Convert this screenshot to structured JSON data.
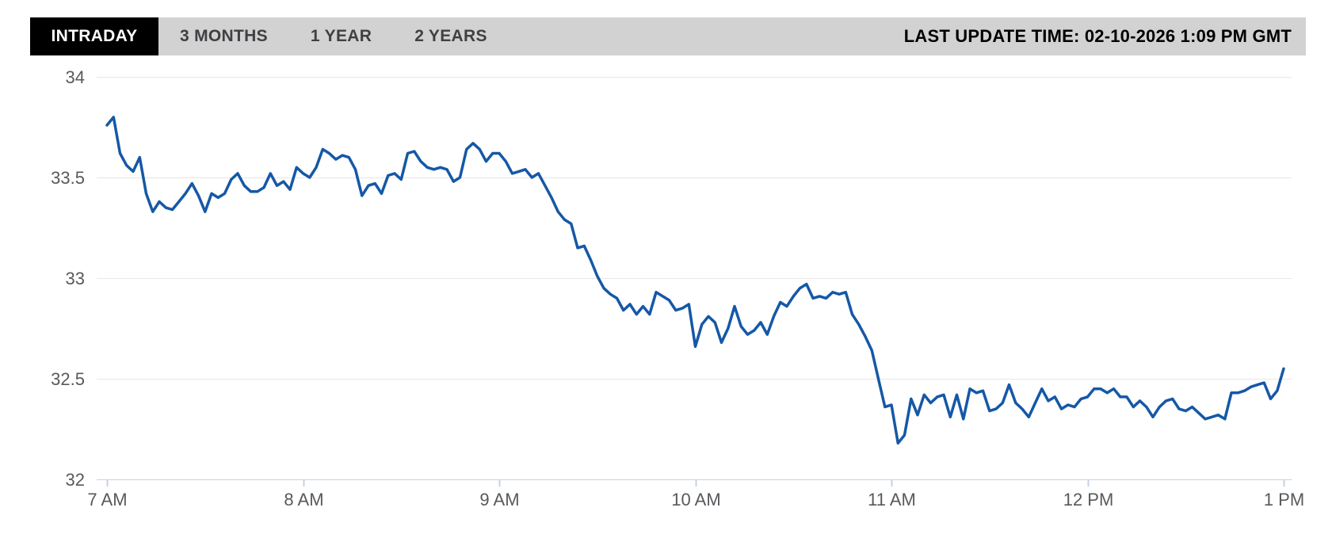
{
  "tabs": {
    "items": [
      {
        "label": "INTRADAY",
        "active": true
      },
      {
        "label": "3 MONTHS",
        "active": false
      },
      {
        "label": "1 YEAR",
        "active": false
      },
      {
        "label": "2 YEARS",
        "active": false
      }
    ]
  },
  "header": {
    "last_update": "LAST UPDATE TIME: 02-10-2026 1:09 PM GMT"
  },
  "colors": {
    "line": "#1558a6",
    "grid": "#e7e7e7",
    "axis": "#c6d2e1",
    "axis_text": "#58595c",
    "tab_bar_bg": "#d2d2d2",
    "tab_active_bg": "#000000",
    "tab_active_text": "#ffffff",
    "tab_text": "#3f4043"
  },
  "chart_data": {
    "type": "line",
    "title": "",
    "xlabel": "",
    "ylabel": "",
    "legend": "none",
    "grid": "horizontal-only",
    "ylim": [
      32,
      34
    ],
    "y_ticks": [
      34,
      33.5,
      33,
      32.5,
      32
    ],
    "x_tick_labels": [
      "7 AM",
      "8 AM",
      "9 AM",
      "10 AM",
      "11 AM",
      "12 PM",
      "1 PM"
    ],
    "x_interval_minutes": 2,
    "x_range_minutes": 360,
    "series": [
      {
        "name": "price",
        "values": [
          33.76,
          33.8,
          33.62,
          33.56,
          33.53,
          33.6,
          33.42,
          33.33,
          33.38,
          33.35,
          33.34,
          33.38,
          33.42,
          33.47,
          33.41,
          33.33,
          33.42,
          33.4,
          33.42,
          33.49,
          33.52,
          33.46,
          33.43,
          33.43,
          33.45,
          33.52,
          33.46,
          33.48,
          33.44,
          33.55,
          33.52,
          33.5,
          33.55,
          33.64,
          33.62,
          33.59,
          33.61,
          33.6,
          33.54,
          33.41,
          33.46,
          33.47,
          33.42,
          33.51,
          33.52,
          33.49,
          33.62,
          33.63,
          33.58,
          33.55,
          33.54,
          33.55,
          33.54,
          33.48,
          33.5,
          33.64,
          33.67,
          33.64,
          33.58,
          33.62,
          33.62,
          33.58,
          33.52,
          33.53,
          33.54,
          33.5,
          33.52,
          33.46,
          33.4,
          33.33,
          33.29,
          33.27,
          33.15,
          33.16,
          33.09,
          33.01,
          32.95,
          32.92,
          32.9,
          32.84,
          32.87,
          32.82,
          32.86,
          32.82,
          32.93,
          32.91,
          32.89,
          32.84,
          32.85,
          32.87,
          32.66,
          32.77,
          32.81,
          32.78,
          32.68,
          32.75,
          32.86,
          32.76,
          32.72,
          32.74,
          32.78,
          32.72,
          32.81,
          32.88,
          32.86,
          32.91,
          32.95,
          32.97,
          32.9,
          32.91,
          32.9,
          32.93,
          32.92,
          32.93,
          32.82,
          32.77,
          32.71,
          32.64,
          32.5,
          32.36,
          32.37,
          32.18,
          32.22,
          32.4,
          32.32,
          32.42,
          32.38,
          32.41,
          32.42,
          32.31,
          32.42,
          32.3,
          32.45,
          32.43,
          32.44,
          32.34,
          32.35,
          32.38,
          32.47,
          32.38,
          32.35,
          32.31,
          32.38,
          32.45,
          32.39,
          32.41,
          32.35,
          32.37,
          32.36,
          32.4,
          32.41,
          32.45,
          32.45,
          32.43,
          32.45,
          32.41,
          32.41,
          32.36,
          32.39,
          32.36,
          32.31,
          32.36,
          32.39,
          32.4,
          32.35,
          32.34,
          32.36,
          32.33,
          32.3,
          32.31,
          32.32,
          32.3,
          32.43,
          32.43,
          32.44,
          32.46,
          32.47,
          32.48,
          32.4,
          32.44,
          32.55
        ]
      }
    ]
  }
}
